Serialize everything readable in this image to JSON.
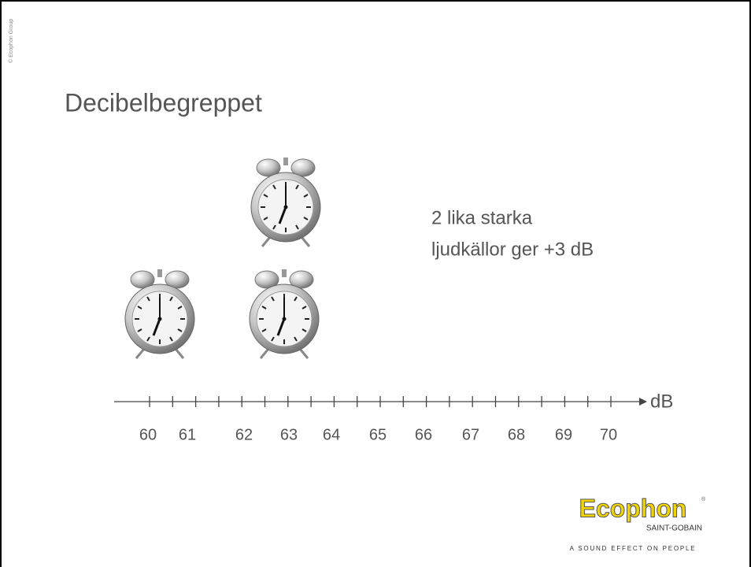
{
  "copyright": "© Ecophon Group",
  "title": "Decibelbegreppet",
  "statement": {
    "line1": "2 lika starka",
    "line2": "ljudkällor ger +3 dB"
  },
  "scale": {
    "unit": "dB",
    "labels": [
      "60",
      "61",
      "62",
      "63",
      "64",
      "65",
      "66",
      "67",
      "68",
      "69",
      "70"
    ]
  },
  "logo": {
    "brand": "Ecophon",
    "registered": "®",
    "group": "SAINT-GOBAIN",
    "tagline": "A SOUND EFFECT ON PEOPLE"
  }
}
